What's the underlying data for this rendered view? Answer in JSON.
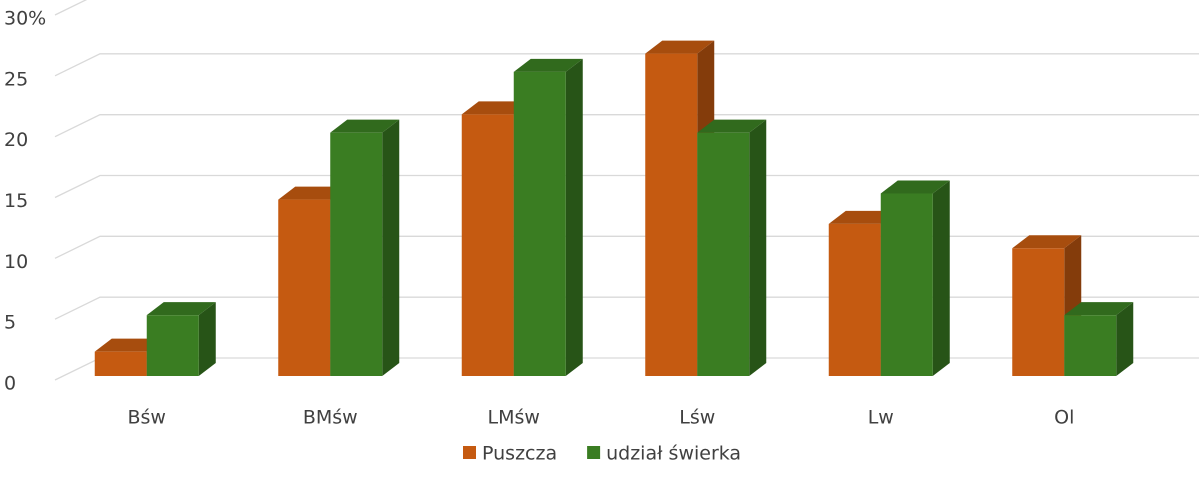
{
  "chart_data": {
    "type": "bar3d",
    "categories": [
      "Bśw",
      "BMśw",
      "LMśw",
      "Lśw",
      "Lw",
      "Ol"
    ],
    "series": [
      {
        "name": "Puszcza",
        "color": "#c55a11",
        "values": [
          2,
          14.5,
          21.5,
          26.5,
          12.5,
          10.5
        ]
      },
      {
        "name": "udział świerka",
        "color": "#3a7d22",
        "values": [
          5,
          20,
          25,
          20,
          15,
          5
        ]
      }
    ],
    "ylim": [
      0,
      30
    ],
    "yticks": [
      0,
      5,
      10,
      15,
      20,
      25,
      {
        "value": 30,
        "label": "30%"
      }
    ],
    "grid": true,
    "legend": "bottom"
  }
}
